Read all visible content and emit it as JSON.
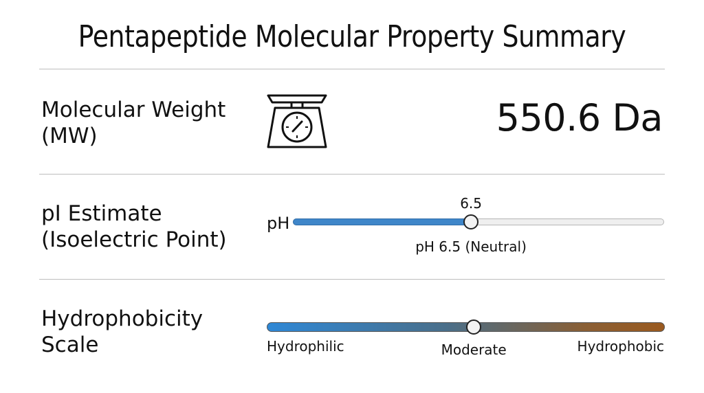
{
  "title": "Pentapeptide Molecular Property Summary",
  "rows": {
    "molecular_weight": {
      "label_line1": "Molecular Weight",
      "label_line2": "(MW)",
      "value": "550.6 Da",
      "icon": "weighing-scale-icon"
    },
    "pi_estimate": {
      "label_line1": "pI Estimate",
      "label_line2": "(Isoelectric Point)",
      "prefix": "pH",
      "marker_value": "6.5",
      "caption": "pH 6.5 (Neutral)",
      "level": 0.48
    },
    "hydrophobicity": {
      "label_line1": "Hydrophobicity",
      "label_line2": "Scale",
      "left_label": "Hydrophilic",
      "middle_label": "Moderate",
      "right_label": "Hydrophobic",
      "level": 0.52
    }
  },
  "colors": {
    "ph_fill": "#3f86c9",
    "hydrophilic": "#2f88d6",
    "hydrophobic": "#9a5a1f"
  }
}
